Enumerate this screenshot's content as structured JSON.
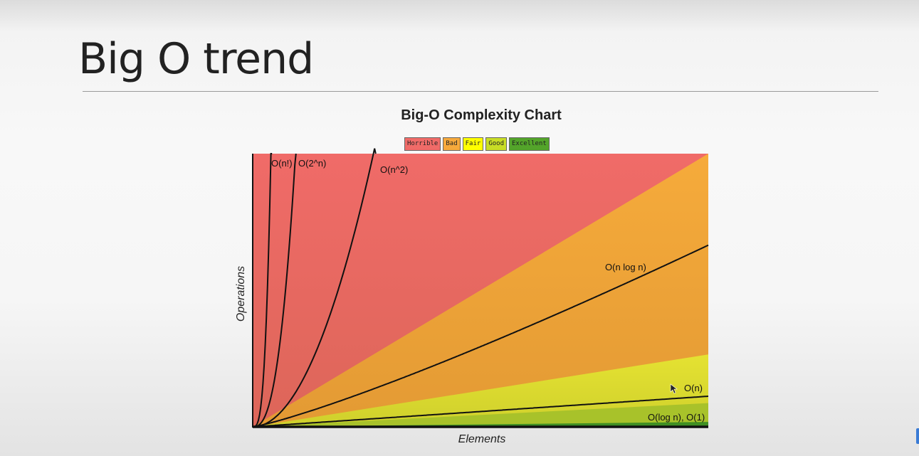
{
  "slide": {
    "title": "Big O trend"
  },
  "chart_data": {
    "type": "area",
    "title": "Big-O Complexity Chart",
    "xlabel": "Elements",
    "ylabel": "Operations",
    "legend": [
      {
        "label": "Horrible",
        "color": "#f06b68"
      },
      {
        "label": "Bad",
        "color": "#f6a93b"
      },
      {
        "label": "Fair",
        "color": "#ffff00"
      },
      {
        "label": "Good",
        "color": "#c8dd25"
      },
      {
        "label": "Excellent",
        "color": "#53a42a"
      }
    ],
    "legend_placement": "top-center",
    "regions": [
      {
        "name": "Horrible",
        "color": "#f06b68"
      },
      {
        "name": "Bad",
        "color": "#f6a93b"
      },
      {
        "name": "Fair",
        "color": "#dedc2c"
      },
      {
        "name": "Good",
        "color": "#a8c22a"
      },
      {
        "name": "Excellent",
        "color": "#3f8f23"
      }
    ],
    "curves": [
      {
        "label": "O(n!)",
        "fn": "factorial"
      },
      {
        "label": "O(2^n)",
        "fn": "exp2"
      },
      {
        "label": "O(n^2)",
        "fn": "square"
      },
      {
        "label": "O(n log n)",
        "fn": "nlogn"
      },
      {
        "label": "O(n)",
        "fn": "linear"
      },
      {
        "label": "O(log n), O(1)",
        "fn": "log_const"
      }
    ],
    "grid": false
  }
}
